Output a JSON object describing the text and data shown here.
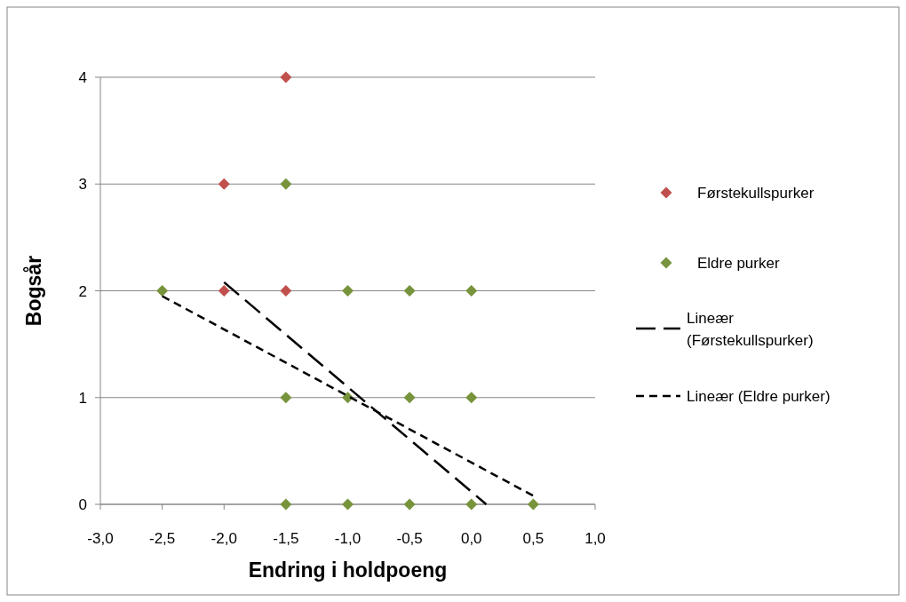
{
  "chart_data": {
    "type": "scatter",
    "xlabel": "Endring i holdpoeng",
    "ylabel": "Bogsår",
    "xlim": [
      -3,
      1
    ],
    "ylim": [
      0,
      4
    ],
    "xticks": [
      {
        "value": -3,
        "label": "-3,0"
      },
      {
        "value": -2.5,
        "label": "-2,5"
      },
      {
        "value": -2,
        "label": "-2,0"
      },
      {
        "value": -1.5,
        "label": "-1,5"
      },
      {
        "value": -1,
        "label": "-1,0"
      },
      {
        "value": -0.5,
        "label": "-0,5"
      },
      {
        "value": 0,
        "label": "0,0"
      },
      {
        "value": 0.5,
        "label": "0,5"
      },
      {
        "value": 1,
        "label": "1,0"
      }
    ],
    "yticks": [
      0,
      1,
      2,
      3,
      4
    ],
    "grid": "y",
    "legend": "right",
    "marker": "diamond",
    "series": [
      {
        "name": "Førstekullspurker",
        "color": "#c0504d",
        "x": [
          -1.5,
          -2,
          -2,
          -1.5
        ],
        "values": [
          4,
          3,
          2,
          2
        ]
      },
      {
        "name": "Eldre purker",
        "color": "#77933c",
        "x": [
          -1.5,
          -2.5,
          -1,
          -0.5,
          0,
          -1.5,
          -1,
          -0.5,
          0,
          -1.5,
          -1,
          -0.5,
          0,
          0.5
        ],
        "values": [
          3,
          2,
          2,
          2,
          2,
          1,
          1,
          1,
          1,
          0,
          0,
          0,
          0,
          0
        ]
      },
      {
        "name": "Lineær (Førstekullspurker)",
        "type": "line",
        "marker": "none",
        "color": "#000000",
        "line_style": "dashed",
        "x": [
          -2,
          0.12
        ],
        "values": [
          2.08,
          0
        ]
      },
      {
        "name": "Lineær (Eldre purker)",
        "type": "line",
        "marker": "none",
        "color": "#000000",
        "line_style": "dashed",
        "x": [
          -2.5,
          0.5
        ],
        "values": [
          1.95,
          0.08
        ]
      }
    ]
  }
}
